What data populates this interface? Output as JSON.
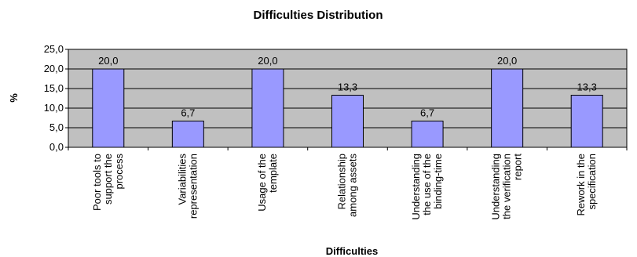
{
  "chart_data": {
    "type": "bar",
    "title": "Difficulties Distribution",
    "xlabel": "Difficulties",
    "ylabel": "%",
    "ylim": [
      0,
      25
    ],
    "yticks": [
      "0,0",
      "5,0",
      "10,0",
      "15,0",
      "20,0",
      "25,0"
    ],
    "yticks_values": [
      0,
      5,
      10,
      15,
      20,
      25
    ],
    "grid": true,
    "legend": "none",
    "colors": {
      "bar": "#9999ff",
      "plot_bg": "#c0c0c0",
      "gridline": "#000000"
    },
    "categories": [
      [
        "Poor tools to",
        "support the",
        "process"
      ],
      [
        "Variabilities",
        "representation"
      ],
      [
        "Usage of the",
        "template"
      ],
      [
        "Relationship",
        "among assets"
      ],
      [
        "Understanding",
        "the use of the",
        "binding-time"
      ],
      [
        "Understanding",
        "the verification",
        "report"
      ],
      [
        "Rework in the",
        "specification"
      ]
    ],
    "values": [
      20.0,
      6.7,
      20.0,
      13.3,
      6.7,
      20.0,
      13.3
    ],
    "value_labels": [
      "20,0",
      "6,7",
      "20,0",
      "13,3",
      "6,7",
      "20,0",
      "13,3"
    ]
  }
}
